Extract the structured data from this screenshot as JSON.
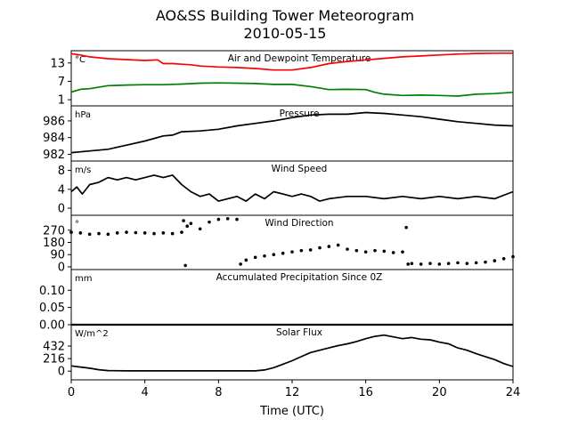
{
  "figure": {
    "title": "AO&SS Building Tower Meteorogram",
    "subtitle": "2010-05-15",
    "xlabel": "Time (UTC)"
  },
  "chart_data": [
    {
      "type": "line",
      "title": "Air and Dewpoint Temperature",
      "ylabel": "°C",
      "ylim": [
        -1,
        17
      ],
      "yticks": [
        1,
        7,
        13
      ],
      "series": [
        {
          "color": "#ff0000",
          "x": [
            0,
            0.5,
            1,
            2,
            3,
            4,
            4.7,
            5,
            5.5,
            6,
            6.5,
            7,
            8,
            9,
            10,
            11,
            12,
            13,
            14,
            15,
            16,
            17,
            18,
            19,
            20,
            21,
            22,
            23,
            24
          ],
          "values": [
            16,
            15.6,
            15,
            14.4,
            14.1,
            13.8,
            14,
            12.8,
            12.8,
            12.6,
            12.4,
            12,
            11.7,
            11.5,
            11.2,
            10.7,
            10.7,
            11.5,
            12.8,
            13.5,
            14,
            14.5,
            15,
            15.3,
            15.6,
            15.9,
            16.1,
            16.2,
            16.2
          ]
        },
        {
          "color": "#008000",
          "x": [
            0,
            0.5,
            1,
            2,
            3,
            4,
            5,
            6,
            7,
            8,
            9,
            10,
            11,
            12,
            13,
            14,
            15,
            16,
            16.5,
            17,
            18,
            19,
            20,
            21,
            22,
            23,
            24
          ],
          "values": [
            3.5,
            4.4,
            4.6,
            5.6,
            5.8,
            5.9,
            5.9,
            6.1,
            6.4,
            6.5,
            6.4,
            6.3,
            6.0,
            6.0,
            5.3,
            4.3,
            4.4,
            4.3,
            3.4,
            2.8,
            2.4,
            2.5,
            2.4,
            2.2,
            2.8,
            3.0,
            3.4
          ]
        }
      ]
    },
    {
      "type": "line",
      "title": "Pressure",
      "ylabel": "hPa",
      "ylim": [
        981.2,
        987.8
      ],
      "yticks": [
        982,
        984,
        986
      ],
      "series": [
        {
          "color": "#000000",
          "x": [
            0,
            1,
            2,
            3,
            4,
            5,
            5.5,
            6,
            7,
            8,
            9,
            10,
            11,
            12,
            13,
            14,
            15,
            16,
            17,
            18,
            19,
            20,
            21,
            22,
            23,
            24
          ],
          "values": [
            982.2,
            982.4,
            982.6,
            983.1,
            983.6,
            984.2,
            984.3,
            984.7,
            984.8,
            985.0,
            985.4,
            985.7,
            986.0,
            986.4,
            986.7,
            986.8,
            986.8,
            987.0,
            986.9,
            986.7,
            986.5,
            986.2,
            985.9,
            985.7,
            985.5,
            985.4
          ]
        }
      ]
    },
    {
      "type": "line",
      "title": "Wind Speed",
      "ylabel": "m/s",
      "ylim": [
        -1.5,
        10
      ],
      "yticks": [
        0,
        4,
        8
      ],
      "series": [
        {
          "color": "#000000",
          "x": [
            0,
            0.3,
            0.6,
            1,
            1.5,
            2,
            2.5,
            3,
            3.5,
            4,
            4.5,
            5,
            5.5,
            6,
            6.5,
            7,
            7.5,
            8,
            8.5,
            9,
            9.5,
            10,
            10.5,
            11,
            11.5,
            12,
            12.5,
            13,
            13.5,
            14,
            15,
            16,
            17,
            18,
            19,
            20,
            21,
            22,
            23,
            24
          ],
          "values": [
            3.5,
            4.5,
            3,
            5.0,
            5.5,
            6.5,
            6.0,
            6.5,
            6.0,
            6.5,
            7.0,
            6.5,
            7.0,
            5.0,
            3.5,
            2.5,
            3.0,
            1.5,
            2.0,
            2.5,
            1.5,
            3.0,
            2.0,
            3.5,
            3.0,
            2.5,
            3.0,
            2.5,
            1.5,
            2.0,
            2.5,
            2.5,
            2.0,
            2.5,
            2.0,
            2.5,
            2.0,
            2.5,
            2.0,
            3.5
          ]
        }
      ]
    },
    {
      "type": "scatter",
      "title": "Wind Direction",
      "ylabel": "°",
      "ylim": [
        -20,
        380
      ],
      "yticks": [
        0,
        90,
        180,
        270
      ],
      "series": [
        {
          "color": "#000000",
          "x": [
            0,
            0.5,
            1,
            1.5,
            2,
            2.5,
            3,
            3.5,
            4,
            4.5,
            5,
            5.5,
            6,
            6.1,
            6.2,
            6.3,
            6.5,
            7,
            7.5,
            8,
            8.5,
            9,
            9.2,
            9.5,
            10,
            10.5,
            11,
            11.5,
            12,
            12.5,
            13,
            13.5,
            14,
            14.5,
            15,
            15.5,
            16,
            16.5,
            17,
            17.5,
            18,
            18.2,
            18.3,
            18.5,
            19,
            19.5,
            20,
            20.5,
            21,
            21.5,
            22,
            22.5,
            23,
            23.5,
            24
          ],
          "values": [
            255,
            250,
            240,
            245,
            240,
            250,
            255,
            252,
            250,
            245,
            250,
            245,
            255,
            340,
            10,
            300,
            320,
            280,
            330,
            350,
            355,
            350,
            20,
            50,
            70,
            80,
            90,
            100,
            110,
            120,
            125,
            140,
            150,
            160,
            130,
            120,
            110,
            120,
            115,
            105,
            110,
            290,
            20,
            25,
            20,
            25,
            20,
            25,
            30,
            25,
            30,
            35,
            45,
            60,
            75
          ]
        }
      ]
    },
    {
      "type": "line",
      "title": "Accumulated Precipitation Since 0Z",
      "ylabel": "mm",
      "ylim": [
        0,
        0.16
      ],
      "yticks": [
        0.0,
        0.05,
        0.1
      ],
      "series": [
        {
          "color": "#000000",
          "x": [
            0,
            24
          ],
          "values": [
            0,
            0
          ]
        }
      ]
    },
    {
      "type": "line",
      "title": "Solar Flux",
      "ylabel": "W/m^2",
      "ylim": [
        -150,
        800
      ],
      "yticks": [
        0,
        216,
        432
      ],
      "series": [
        {
          "color": "#000000",
          "x": [
            0,
            0.5,
            1,
            1.5,
            2,
            3,
            4,
            5,
            6,
            7,
            8,
            9,
            10,
            10.5,
            11,
            11.5,
            12,
            12.5,
            13,
            13.5,
            14,
            14.5,
            15,
            15.5,
            16,
            16.5,
            17,
            17.5,
            18,
            18.5,
            19,
            19.5,
            20,
            20.5,
            21,
            21.5,
            22,
            22.5,
            23,
            23.5,
            24
          ],
          "values": [
            90,
            70,
            50,
            25,
            10,
            5,
            5,
            5,
            5,
            5,
            5,
            5,
            5,
            20,
            60,
            120,
            180,
            250,
            320,
            360,
            400,
            440,
            470,
            510,
            560,
            600,
            620,
            590,
            560,
            580,
            550,
            540,
            500,
            470,
            400,
            360,
            300,
            250,
            200,
            130,
            80
          ]
        }
      ]
    }
  ],
  "xaxis": {
    "range": [
      0,
      24
    ],
    "ticks": [
      0,
      4,
      8,
      12,
      16,
      20,
      24
    ],
    "tick_labels": [
      "0",
      "4",
      "8",
      "12",
      "16",
      "20",
      "24"
    ]
  }
}
